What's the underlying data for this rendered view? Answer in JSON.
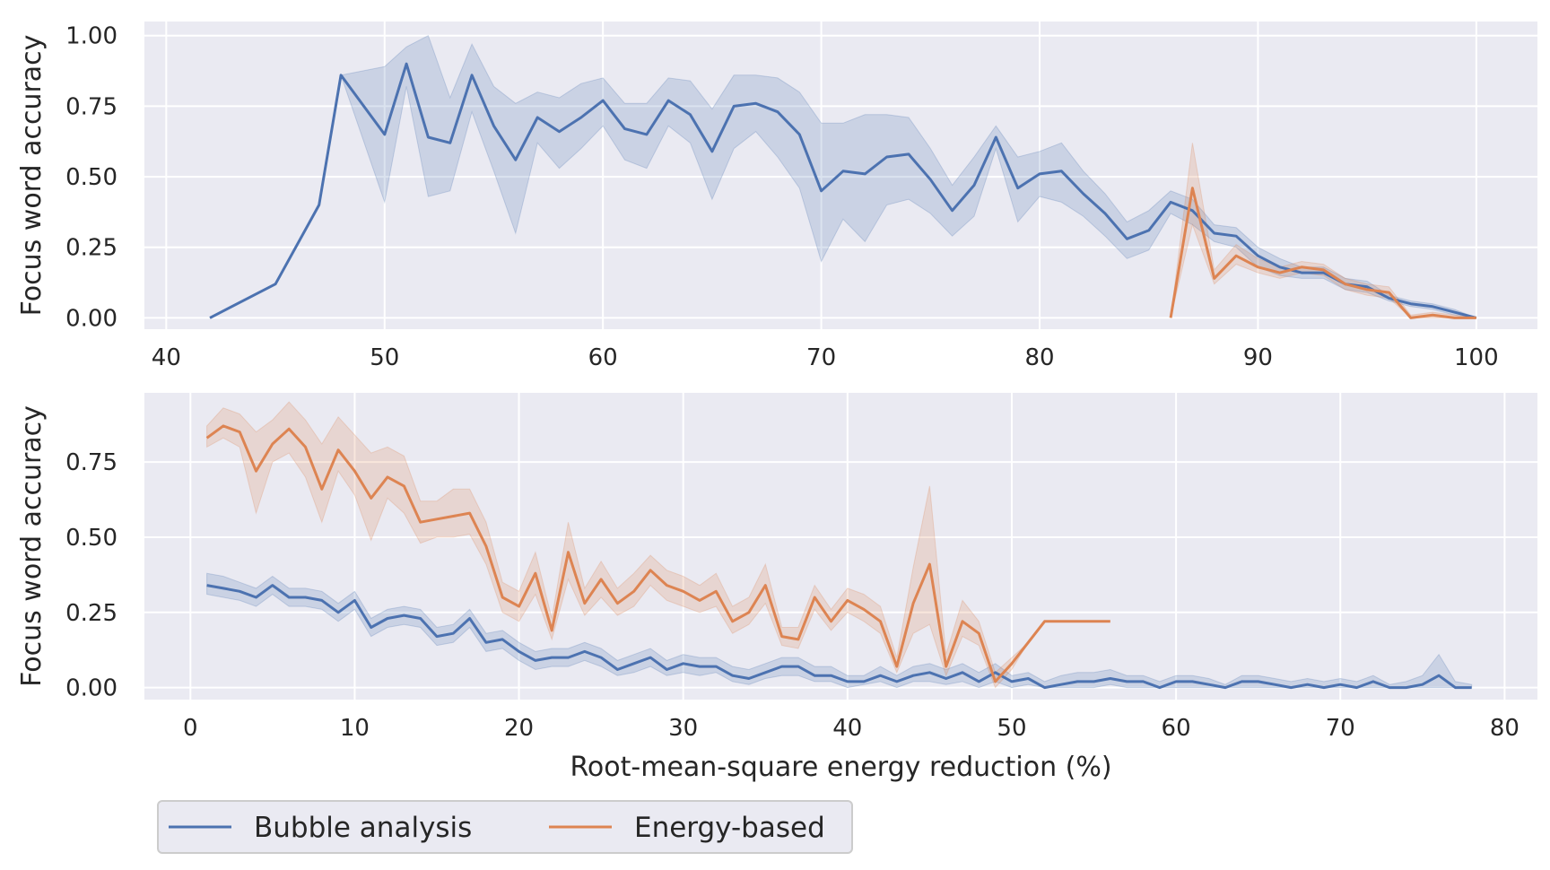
{
  "colors": {
    "panel_background": "#eaeaf2",
    "bubble": "#4c72b0",
    "energy": "#dd8452"
  },
  "legend": {
    "placement": "bottom-left",
    "entries": [
      "Bubble analysis",
      "Energy-based"
    ]
  },
  "chart_data": [
    {
      "type": "line",
      "title": "",
      "xlabel": "",
      "ylabel": "Focus word accuracy",
      "xlim": [
        39,
        102.8
      ],
      "ylim": [
        -0.04,
        1.05
      ],
      "xticks": [
        40,
        50,
        60,
        70,
        80,
        90,
        100
      ],
      "xtick_labels": [
        "40",
        "50",
        "60",
        "70",
        "80",
        "90",
        "100"
      ],
      "yticks": [
        0,
        0.25,
        0.5,
        0.75,
        1.0
      ],
      "ytick_labels": [
        "0.00",
        "0.25",
        "0.50",
        "0.75",
        "1.00"
      ],
      "grid": true,
      "series": [
        {
          "name": "Bubble analysis",
          "color": "#4c72b0",
          "x": [
            42,
            45,
            47,
            48,
            50,
            51,
            52,
            53,
            54,
            55,
            56,
            57,
            58,
            59,
            60,
            61,
            62,
            63,
            64,
            65,
            66,
            67,
            68,
            69,
            70,
            71,
            72,
            73,
            74,
            75,
            76,
            77,
            78,
            79,
            80,
            81,
            82,
            83,
            84,
            85,
            86,
            87,
            88,
            89,
            90,
            91,
            92,
            93,
            94,
            95,
            96,
            97,
            98,
            99,
            100
          ],
          "y": [
            0.0,
            0.12,
            0.4,
            0.86,
            0.65,
            0.9,
            0.64,
            0.62,
            0.86,
            0.68,
            0.56,
            0.71,
            0.66,
            0.71,
            0.77,
            0.67,
            0.65,
            0.77,
            0.72,
            0.59,
            0.75,
            0.76,
            0.73,
            0.65,
            0.45,
            0.52,
            0.51,
            0.57,
            0.58,
            0.49,
            0.38,
            0.47,
            0.64,
            0.46,
            0.51,
            0.52,
            0.44,
            0.37,
            0.28,
            0.31,
            0.41,
            0.38,
            0.3,
            0.29,
            0.22,
            0.18,
            0.16,
            0.16,
            0.12,
            0.11,
            0.07,
            0.05,
            0.04,
            0.02,
            0.0
          ],
          "ci_low": [
            0.0,
            0.12,
            0.4,
            0.86,
            0.41,
            0.82,
            0.43,
            0.45,
            0.73,
            0.52,
            0.3,
            0.62,
            0.53,
            0.6,
            0.68,
            0.56,
            0.53,
            0.68,
            0.62,
            0.42,
            0.6,
            0.66,
            0.57,
            0.46,
            0.2,
            0.35,
            0.27,
            0.4,
            0.42,
            0.37,
            0.29,
            0.36,
            0.6,
            0.34,
            0.43,
            0.41,
            0.36,
            0.29,
            0.21,
            0.24,
            0.37,
            0.33,
            0.27,
            0.25,
            0.18,
            0.15,
            0.14,
            0.14,
            0.1,
            0.09,
            0.06,
            0.04,
            0.03,
            0.01,
            0.0
          ],
          "ci_high": [
            0.0,
            0.12,
            0.4,
            0.86,
            0.89,
            0.96,
            1.0,
            0.78,
            0.97,
            0.82,
            0.76,
            0.8,
            0.78,
            0.83,
            0.85,
            0.76,
            0.76,
            0.85,
            0.84,
            0.74,
            0.86,
            0.86,
            0.85,
            0.8,
            0.69,
            0.69,
            0.72,
            0.72,
            0.71,
            0.6,
            0.47,
            0.57,
            0.68,
            0.57,
            0.59,
            0.62,
            0.52,
            0.44,
            0.34,
            0.38,
            0.45,
            0.42,
            0.33,
            0.32,
            0.25,
            0.21,
            0.18,
            0.18,
            0.14,
            0.13,
            0.08,
            0.06,
            0.05,
            0.03,
            0.0
          ]
        },
        {
          "name": "Energy-based",
          "color": "#dd8452",
          "x": [
            86,
            87,
            88,
            89,
            90,
            91,
            92,
            93,
            94,
            95,
            96,
            97,
            98,
            99,
            100
          ],
          "y": [
            0.0,
            0.46,
            0.14,
            0.22,
            0.18,
            0.16,
            0.18,
            0.17,
            0.12,
            0.1,
            0.09,
            0.0,
            0.01,
            0.0,
            0.0
          ],
          "ci_low": [
            0.0,
            0.33,
            0.12,
            0.19,
            0.16,
            0.14,
            0.16,
            0.15,
            0.1,
            0.08,
            0.07,
            0.0,
            0.0,
            0.0,
            0.0
          ],
          "ci_high": [
            0.0,
            0.62,
            0.17,
            0.26,
            0.21,
            0.18,
            0.2,
            0.19,
            0.14,
            0.12,
            0.11,
            0.01,
            0.02,
            0.01,
            0.0
          ]
        }
      ]
    },
    {
      "type": "line",
      "title": "",
      "xlabel": "Root-mean-square energy reduction (%)",
      "ylabel": "Focus word accuracy",
      "xlim": [
        -2.8,
        82
      ],
      "ylim": [
        -0.04,
        0.98
      ],
      "xticks": [
        0,
        10,
        20,
        30,
        40,
        50,
        60,
        70,
        80
      ],
      "xtick_labels": [
        "0",
        "10",
        "20",
        "30",
        "40",
        "50",
        "60",
        "70",
        "80"
      ],
      "yticks": [
        0,
        0.25,
        0.5,
        0.75
      ],
      "ytick_labels": [
        "0.00",
        "0.25",
        "0.50",
        "0.75"
      ],
      "grid": true,
      "series": [
        {
          "name": "Bubble analysis",
          "color": "#4c72b0",
          "x": [
            1,
            2,
            3,
            4,
            5,
            6,
            7,
            8,
            9,
            10,
            11,
            12,
            13,
            14,
            15,
            16,
            17,
            18,
            19,
            20,
            21,
            22,
            23,
            24,
            25,
            26,
            27,
            28,
            29,
            30,
            31,
            32,
            33,
            34,
            35,
            36,
            37,
            38,
            39,
            40,
            41,
            42,
            43,
            44,
            45,
            46,
            47,
            48,
            49,
            50,
            51,
            52,
            53,
            54,
            55,
            56,
            57,
            58,
            59,
            60,
            61,
            62,
            63,
            64,
            65,
            66,
            67,
            68,
            69,
            70,
            71,
            72,
            73,
            74,
            75,
            76,
            77,
            78
          ],
          "y": [
            0.34,
            0.33,
            0.32,
            0.3,
            0.34,
            0.3,
            0.3,
            0.29,
            0.25,
            0.29,
            0.2,
            0.23,
            0.24,
            0.23,
            0.17,
            0.18,
            0.23,
            0.15,
            0.16,
            0.12,
            0.09,
            0.1,
            0.1,
            0.12,
            0.1,
            0.06,
            0.08,
            0.1,
            0.06,
            0.08,
            0.07,
            0.07,
            0.04,
            0.03,
            0.05,
            0.07,
            0.07,
            0.04,
            0.04,
            0.02,
            0.02,
            0.04,
            0.02,
            0.04,
            0.05,
            0.03,
            0.05,
            0.02,
            0.05,
            0.02,
            0.03,
            0.0,
            0.01,
            0.02,
            0.02,
            0.03,
            0.02,
            0.02,
            0.0,
            0.02,
            0.02,
            0.01,
            0.0,
            0.02,
            0.02,
            0.01,
            0.0,
            0.01,
            0.0,
            0.01,
            0.0,
            0.02,
            0.0,
            0.0,
            0.01,
            0.04,
            0.0,
            0.0
          ],
          "ci_low": [
            0.31,
            0.3,
            0.29,
            0.27,
            0.31,
            0.27,
            0.27,
            0.26,
            0.22,
            0.26,
            0.17,
            0.2,
            0.21,
            0.2,
            0.14,
            0.15,
            0.2,
            0.12,
            0.13,
            0.09,
            0.06,
            0.07,
            0.07,
            0.09,
            0.07,
            0.04,
            0.05,
            0.07,
            0.04,
            0.05,
            0.04,
            0.05,
            0.02,
            0.01,
            0.03,
            0.04,
            0.04,
            0.02,
            0.02,
            0.0,
            0.01,
            0.02,
            0.0,
            0.02,
            0.02,
            0.01,
            0.02,
            0.0,
            0.02,
            0.0,
            0.01,
            0.0,
            0.0,
            0.0,
            0.0,
            0.01,
            0.0,
            0.0,
            0.0,
            0.0,
            0.0,
            0.0,
            0.0,
            0.0,
            0.0,
            0.0,
            0.0,
            0.0,
            0.0,
            0.0,
            0.0,
            0.0,
            0.0,
            0.0,
            0.0,
            0.0,
            0.0,
            0.0
          ],
          "ci_high": [
            0.38,
            0.37,
            0.35,
            0.33,
            0.37,
            0.33,
            0.33,
            0.32,
            0.28,
            0.32,
            0.23,
            0.26,
            0.27,
            0.26,
            0.2,
            0.21,
            0.26,
            0.18,
            0.19,
            0.15,
            0.12,
            0.13,
            0.13,
            0.15,
            0.13,
            0.09,
            0.11,
            0.13,
            0.09,
            0.11,
            0.1,
            0.1,
            0.07,
            0.06,
            0.08,
            0.1,
            0.1,
            0.07,
            0.07,
            0.04,
            0.04,
            0.07,
            0.04,
            0.07,
            0.08,
            0.06,
            0.08,
            0.05,
            0.08,
            0.04,
            0.05,
            0.02,
            0.04,
            0.05,
            0.05,
            0.06,
            0.04,
            0.04,
            0.02,
            0.04,
            0.04,
            0.03,
            0.01,
            0.04,
            0.04,
            0.03,
            0.02,
            0.03,
            0.02,
            0.03,
            0.02,
            0.04,
            0.01,
            0.02,
            0.04,
            0.11,
            0.02,
            0.01
          ]
        },
        {
          "name": "Energy-based",
          "color": "#dd8452",
          "x": [
            1,
            2,
            3,
            4,
            5,
            6,
            7,
            8,
            9,
            10,
            11,
            12,
            13,
            14,
            15,
            16,
            17,
            18,
            19,
            20,
            21,
            22,
            23,
            24,
            25,
            26,
            27,
            28,
            29,
            30,
            31,
            32,
            33,
            34,
            35,
            36,
            37,
            38,
            39,
            40,
            41,
            42,
            43,
            44,
            45,
            46,
            47,
            48,
            49,
            50,
            51,
            52,
            53,
            54,
            55,
            56
          ],
          "y": [
            0.83,
            0.87,
            0.85,
            0.72,
            0.81,
            0.86,
            0.8,
            0.66,
            0.79,
            0.72,
            0.63,
            0.7,
            0.67,
            0.55,
            0.56,
            0.57,
            0.58,
            0.47,
            0.3,
            0.27,
            0.38,
            0.19,
            0.45,
            0.28,
            0.36,
            0.28,
            0.32,
            0.39,
            0.34,
            0.32,
            0.29,
            0.32,
            0.22,
            0.25,
            0.34,
            0.17,
            0.16,
            0.3,
            0.22,
            0.29,
            0.26,
            0.22,
            0.07,
            0.28,
            0.41,
            0.07,
            0.22,
            0.18,
            0.02,
            0.08,
            0.15,
            0.22,
            0.22,
            0.22,
            0.22,
            0.22
          ],
          "ci_low": [
            0.8,
            0.83,
            0.8,
            0.58,
            0.75,
            0.78,
            0.7,
            0.55,
            0.72,
            0.64,
            0.49,
            0.63,
            0.58,
            0.48,
            0.5,
            0.5,
            0.51,
            0.41,
            0.25,
            0.22,
            0.31,
            0.16,
            0.36,
            0.24,
            0.3,
            0.24,
            0.27,
            0.34,
            0.29,
            0.27,
            0.25,
            0.27,
            0.18,
            0.21,
            0.28,
            0.14,
            0.13,
            0.26,
            0.19,
            0.25,
            0.22,
            0.18,
            0.05,
            0.18,
            0.21,
            0.04,
            0.17,
            0.14,
            0.0,
            0.06,
            0.15,
            0.22,
            0.22,
            0.22,
            0.22,
            0.22
          ],
          "ci_high": [
            0.87,
            0.93,
            0.91,
            0.85,
            0.89,
            0.95,
            0.89,
            0.81,
            0.9,
            0.84,
            0.78,
            0.8,
            0.77,
            0.62,
            0.62,
            0.66,
            0.66,
            0.55,
            0.35,
            0.32,
            0.45,
            0.23,
            0.55,
            0.33,
            0.42,
            0.33,
            0.38,
            0.44,
            0.39,
            0.37,
            0.34,
            0.38,
            0.27,
            0.3,
            0.41,
            0.2,
            0.2,
            0.34,
            0.26,
            0.33,
            0.31,
            0.27,
            0.1,
            0.4,
            0.67,
            0.11,
            0.29,
            0.22,
            0.05,
            0.1,
            0.15,
            0.22,
            0.22,
            0.22,
            0.22,
            0.22
          ]
        }
      ]
    }
  ]
}
